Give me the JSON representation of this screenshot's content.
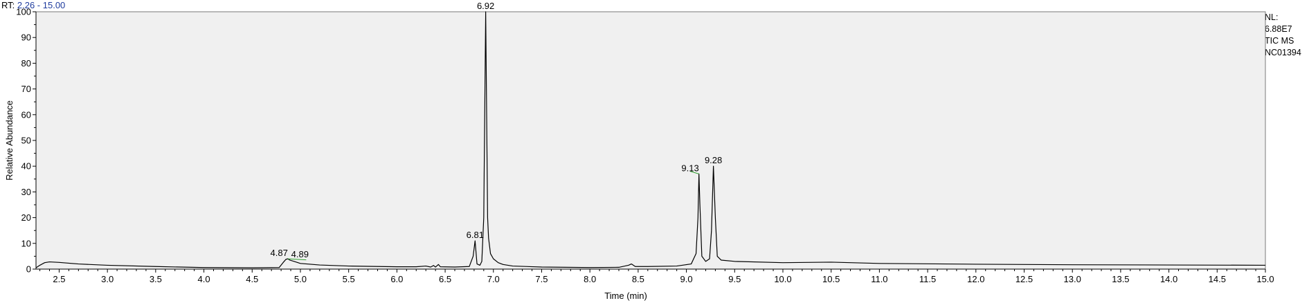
{
  "header": {
    "rt_prefix": "RT:",
    "rt_range": "2.26 - 15.00"
  },
  "nl_block": {
    "line1": "NL:",
    "line2": "6.88E7",
    "line3": "TIC  MS",
    "line4": "NC01394"
  },
  "colors": {
    "background": "#f0f0f0",
    "trace": "#000000",
    "baseline_marker": "#2e9e2e",
    "rt_range_text": "#1f3c9e"
  },
  "chart_data": {
    "type": "line",
    "title": "",
    "xlabel": "Time (min)",
    "ylabel": "Relative Abundance",
    "xlim": [
      2.26,
      15.0
    ],
    "ylim": [
      0,
      100
    ],
    "x_ticks": [
      "2.5",
      "3.0",
      "3.5",
      "4.0",
      "4.5",
      "5.0",
      "5.5",
      "6.0",
      "6.5",
      "7.0",
      "7.5",
      "8.0",
      "8.5",
      "9.0",
      "9.5",
      "10.0",
      "10.5",
      "11.0",
      "11.5",
      "12.0",
      "12.5",
      "13.0",
      "13.5",
      "14.0",
      "14.5",
      "15.0"
    ],
    "y_ticks": [
      "0",
      "10",
      "20",
      "30",
      "40",
      "50",
      "60",
      "70",
      "80",
      "90",
      "100"
    ],
    "grid": false,
    "series": [
      {
        "x": [
          2.26,
          2.3,
          2.35,
          2.4,
          2.5,
          2.7,
          3.0,
          3.5,
          4.0,
          4.5,
          4.78,
          4.82,
          4.85,
          4.87,
          4.89,
          4.95,
          5.0,
          5.2,
          5.5,
          6.0,
          6.2,
          6.3,
          6.35,
          6.38,
          6.4,
          6.43,
          6.45,
          6.6,
          6.75,
          6.79,
          6.81,
          6.83,
          6.86,
          6.88,
          6.9,
          6.92,
          6.93,
          6.94,
          6.95,
          6.97,
          7.0,
          7.05,
          7.1,
          7.2,
          7.5,
          8.0,
          8.3,
          8.4,
          8.43,
          8.47,
          8.6,
          8.9,
          9.05,
          9.1,
          9.12,
          9.13,
          9.14,
          9.16,
          9.2,
          9.24,
          9.26,
          9.28,
          9.3,
          9.32,
          9.36,
          9.5,
          10.0,
          10.5,
          11.0,
          12.0,
          13.0,
          14.0,
          15.0
        ],
        "y": [
          0.5,
          1.5,
          2.5,
          2.8,
          2.6,
          2.0,
          1.5,
          1.0,
          0.6,
          0.5,
          0.6,
          2.5,
          3.8,
          4.0,
          3.5,
          2.8,
          2.2,
          1.6,
          1.2,
          0.9,
          0.9,
          1.2,
          0.8,
          1.4,
          0.8,
          1.8,
          0.9,
          0.8,
          1.0,
          5.0,
          11.0,
          2.0,
          1.5,
          3.0,
          20.0,
          100.0,
          60.0,
          20.0,
          12.0,
          6.0,
          4.0,
          2.5,
          1.8,
          1.2,
          0.8,
          0.6,
          0.7,
          1.5,
          2.0,
          1.0,
          1.0,
          1.2,
          2.0,
          6.0,
          20.0,
          37.0,
          25.0,
          5.0,
          3.0,
          4.0,
          15.0,
          40.0,
          20.0,
          5.0,
          3.5,
          3.0,
          2.5,
          2.7,
          2.2,
          1.9,
          1.7,
          1.6,
          1.5
        ]
      }
    ],
    "annotations": [
      {
        "label": "4.87",
        "x": 4.87,
        "y": 4.0
      },
      {
        "label": "4.89",
        "x": 4.89,
        "y": 3.5
      },
      {
        "label": "6.81",
        "x": 6.81,
        "y": 11.0
      },
      {
        "label": "6.92",
        "x": 6.92,
        "y": 100.0
      },
      {
        "label": "9.13",
        "x": 9.13,
        "y": 37.0
      },
      {
        "label": "9.28",
        "x": 9.28,
        "y": 40.0
      }
    ],
    "baseline_markers": [
      {
        "x": [
          4.87,
          5.06
        ],
        "y": [
          4.0,
          3.6
        ]
      },
      {
        "x": [
          9.04,
          9.13
        ],
        "y": [
          38.0,
          37.0
        ]
      }
    ]
  }
}
